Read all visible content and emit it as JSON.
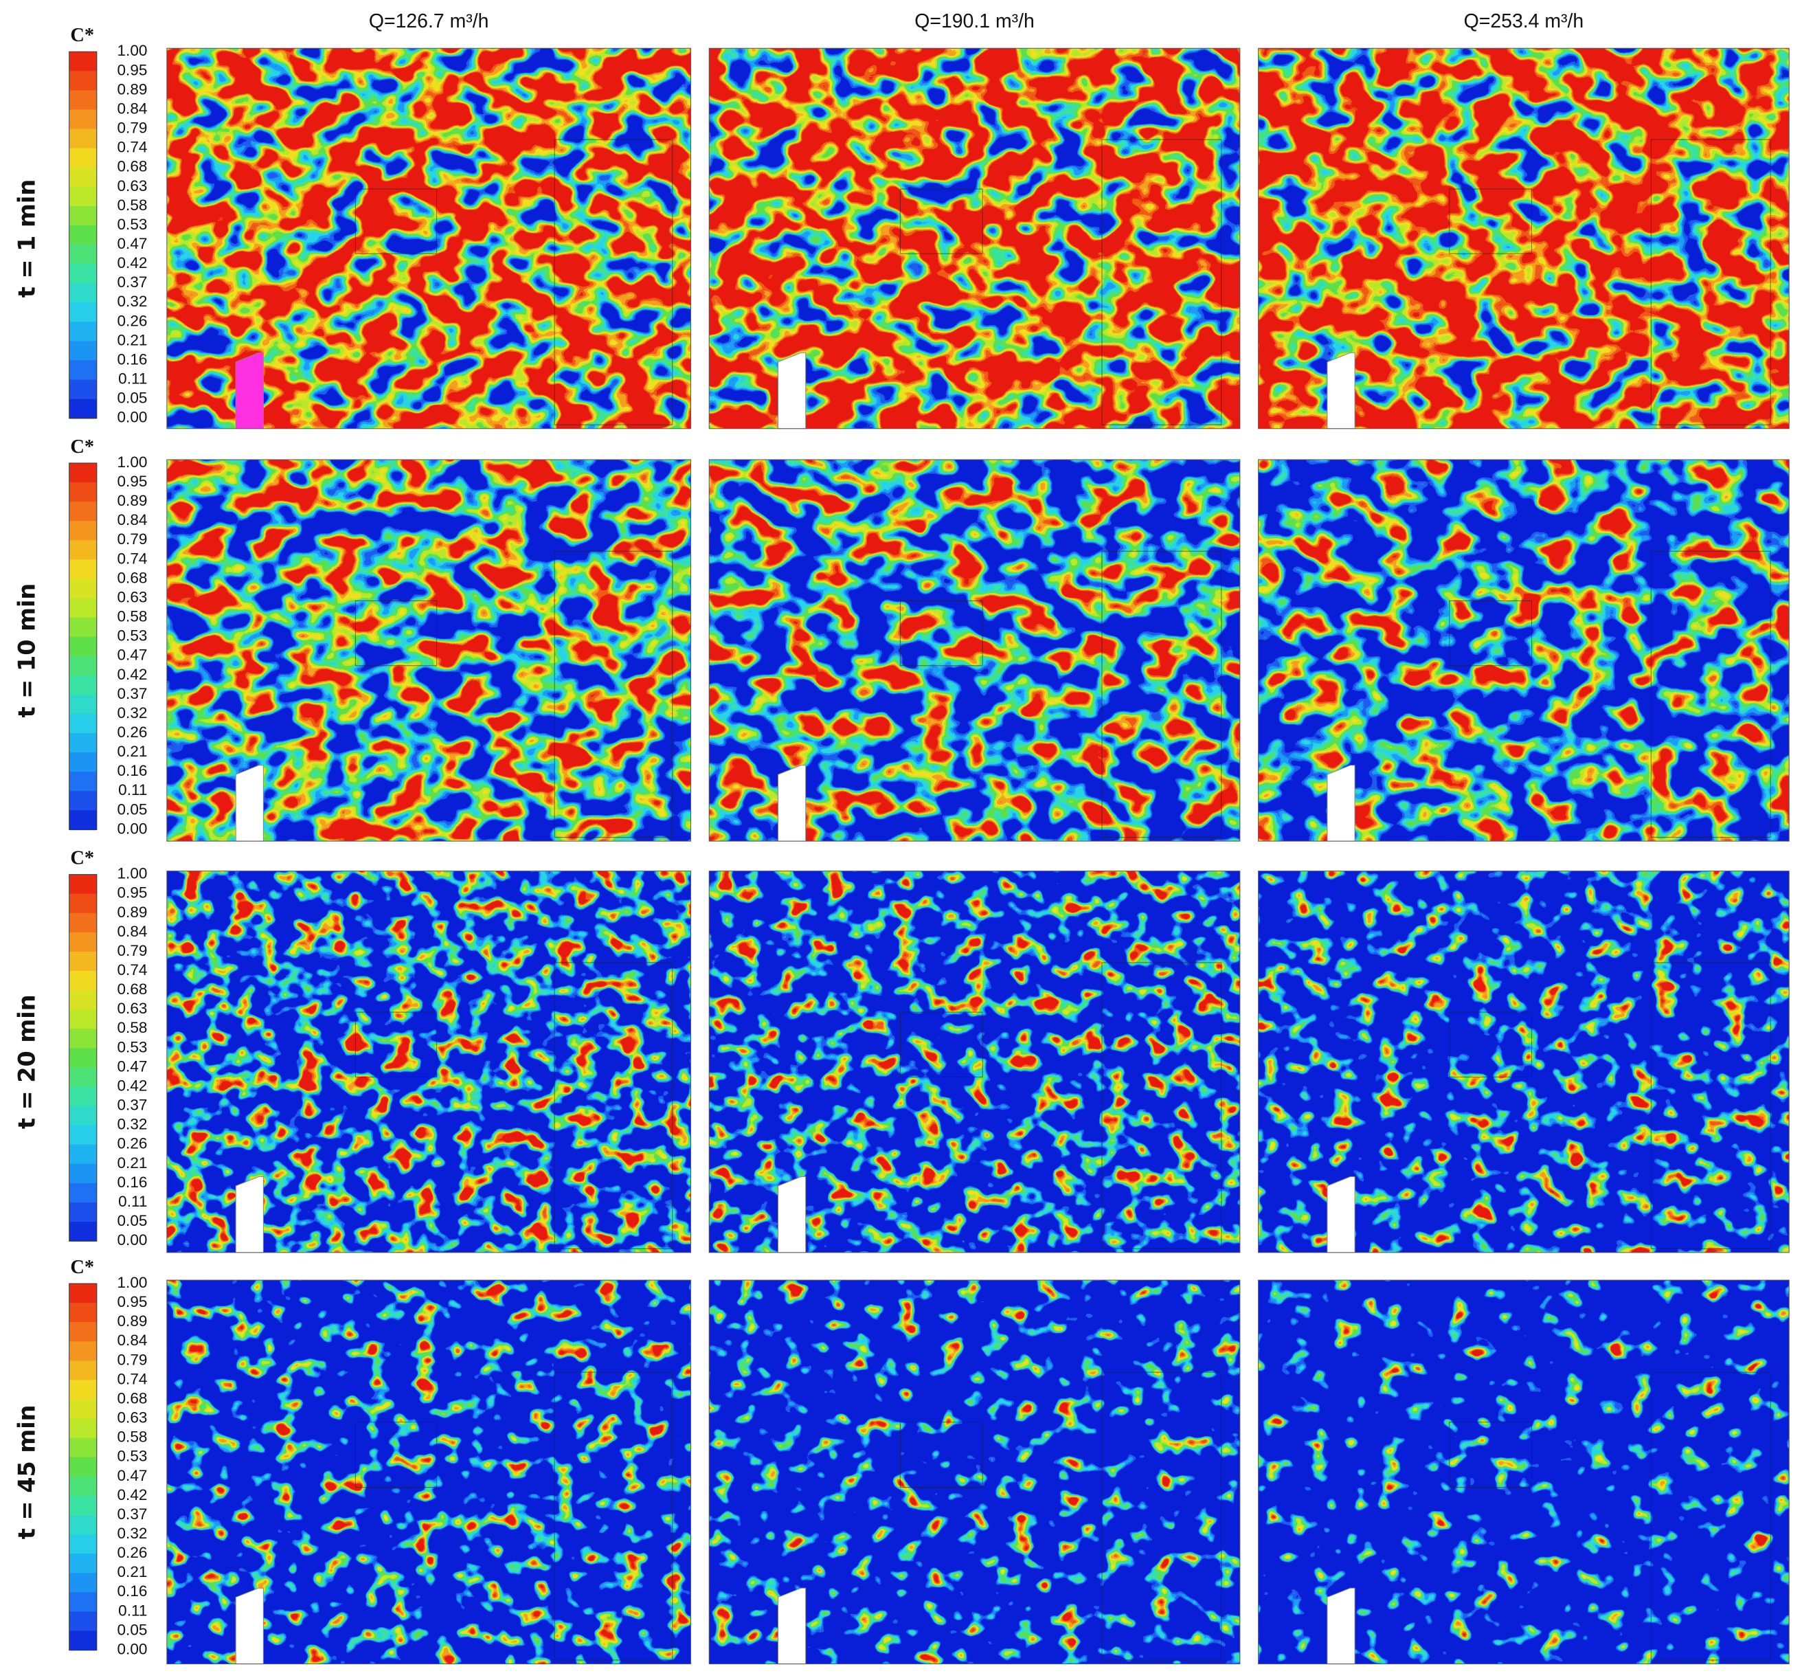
{
  "column_headers": [
    "Q=126.7 m³/h",
    "Q=190.1 m³/h",
    "Q=253.4 m³/h"
  ],
  "row_labels": [
    "t = 1 min",
    "t = 10 min",
    "t = 20 min",
    "t = 45 min"
  ],
  "colorbar": {
    "title": "C*",
    "ticks": [
      "1.00",
      "0.95",
      "0.89",
      "0.84",
      "0.79",
      "0.74",
      "0.68",
      "0.63",
      "0.58",
      "0.53",
      "0.47",
      "0.42",
      "0.37",
      "0.32",
      "0.26",
      "0.21",
      "0.16",
      "0.11",
      "0.05",
      "0.00"
    ]
  }
}
